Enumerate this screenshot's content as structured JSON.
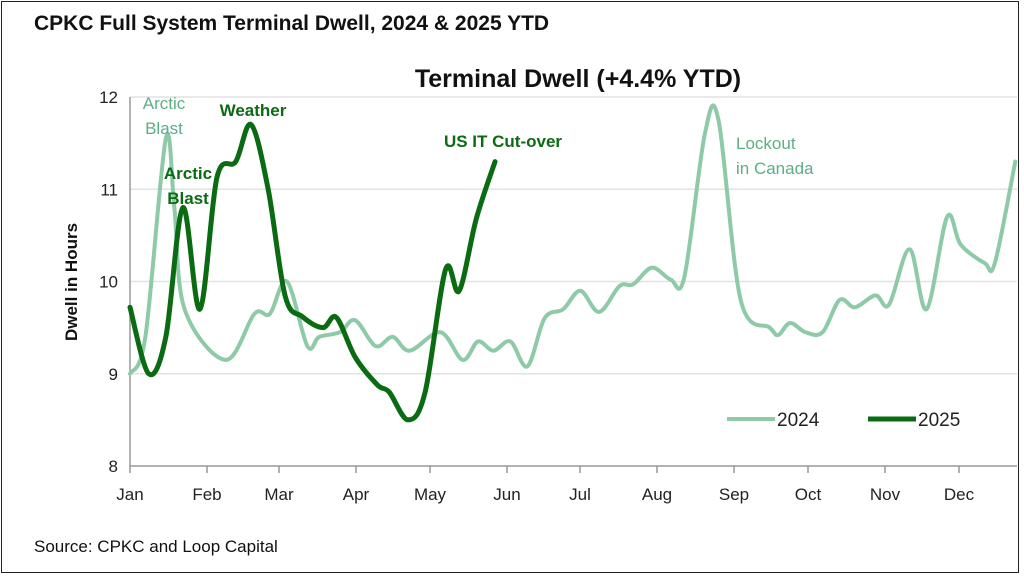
{
  "header": {
    "title": "CPKC Full System Terminal Dwell, 2024 & 2025 YTD",
    "source": "Source: CPKC and Loop Capital"
  },
  "chart_data": {
    "type": "line",
    "title": "Terminal Dwell (+4.4% YTD)",
    "xlabel": "",
    "ylabel": "Dwell in Hours",
    "x_unit": "week of year",
    "xlim": [
      0,
      52
    ],
    "ylim": [
      8,
      12
    ],
    "yticks": [
      8,
      9,
      10,
      11,
      12
    ],
    "xtick_labels": [
      "Jan",
      "Feb",
      "Mar",
      "Apr",
      "May",
      "Jun",
      "Jul",
      "Aug",
      "Sep",
      "Oct",
      "Nov",
      "Dec"
    ],
    "grid": "horizontal",
    "legend_position": "bottom-right",
    "series": [
      {
        "name": "2024",
        "color": "#8ecaa8",
        "points": [
          [
            0,
            9.0
          ],
          [
            0.9,
            9.4
          ],
          [
            2.1,
            11.55
          ],
          [
            2.6,
            10.8
          ],
          [
            3.2,
            9.7
          ],
          [
            5.6,
            9.15
          ],
          [
            7.3,
            9.65
          ],
          [
            8.2,
            9.65
          ],
          [
            9.2,
            10.0
          ],
          [
            10.4,
            9.3
          ],
          [
            11.1,
            9.4
          ],
          [
            12.3,
            9.45
          ],
          [
            13.2,
            9.58
          ],
          [
            14.4,
            9.3
          ],
          [
            15.4,
            9.4
          ],
          [
            16.4,
            9.25
          ],
          [
            18.2,
            9.45
          ],
          [
            19.5,
            9.15
          ],
          [
            20.4,
            9.35
          ],
          [
            21.3,
            9.25
          ],
          [
            22.3,
            9.35
          ],
          [
            23.3,
            9.08
          ],
          [
            24.3,
            9.6
          ],
          [
            25.4,
            9.7
          ],
          [
            26.4,
            9.9
          ],
          [
            27.5,
            9.67
          ],
          [
            28.7,
            9.95
          ],
          [
            29.5,
            9.97
          ],
          [
            30.6,
            10.15
          ],
          [
            31.7,
            10.02
          ],
          [
            32.5,
            10.05
          ],
          [
            33.7,
            11.6
          ],
          [
            34.5,
            11.75
          ],
          [
            35.8,
            9.8
          ],
          [
            37.5,
            9.5
          ],
          [
            38.0,
            9.42
          ],
          [
            38.7,
            9.55
          ],
          [
            39.6,
            9.45
          ],
          [
            40.6,
            9.45
          ],
          [
            41.6,
            9.8
          ],
          [
            42.5,
            9.72
          ],
          [
            43.7,
            9.85
          ],
          [
            44.5,
            9.75
          ],
          [
            45.7,
            10.35
          ],
          [
            46.7,
            9.7
          ],
          [
            47.9,
            10.7
          ],
          [
            48.7,
            10.4
          ],
          [
            50.1,
            10.2
          ],
          [
            50.7,
            10.2
          ],
          [
            51.9,
            11.3
          ]
        ]
      },
      {
        "name": "2025",
        "color": "#0b6b12",
        "points": [
          [
            0,
            9.72
          ],
          [
            1.1,
            9.0
          ],
          [
            2.1,
            9.4
          ],
          [
            3.1,
            10.8
          ],
          [
            4.1,
            9.7
          ],
          [
            5.1,
            11.13
          ],
          [
            6.2,
            11.3
          ],
          [
            7.1,
            11.7
          ],
          [
            8.1,
            11.0
          ],
          [
            9.1,
            9.84
          ],
          [
            10.1,
            9.62
          ],
          [
            11.3,
            9.5
          ],
          [
            12.1,
            9.61
          ],
          [
            13.2,
            9.18
          ],
          [
            14.5,
            8.88
          ],
          [
            15.2,
            8.8
          ],
          [
            16.3,
            8.5
          ],
          [
            17.3,
            8.8
          ],
          [
            18.5,
            10.13
          ],
          [
            19.3,
            9.9
          ],
          [
            20.3,
            10.68
          ],
          [
            21.4,
            11.3
          ]
        ]
      }
    ],
    "annotations": [
      {
        "text_lines": [
          "Arctic",
          "Blast"
        ],
        "series": "2024"
      },
      {
        "text_lines": [
          "Arctic",
          "Blast"
        ],
        "series": "2025"
      },
      {
        "text_lines": [
          "Weather"
        ],
        "series": "2025"
      },
      {
        "text_lines": [
          "US IT Cut-over"
        ],
        "series": "2025"
      },
      {
        "text_lines": [
          "Lockout",
          "in Canada"
        ],
        "series": "2024"
      }
    ],
    "annotation_color_2024": "#5cae85"
  }
}
